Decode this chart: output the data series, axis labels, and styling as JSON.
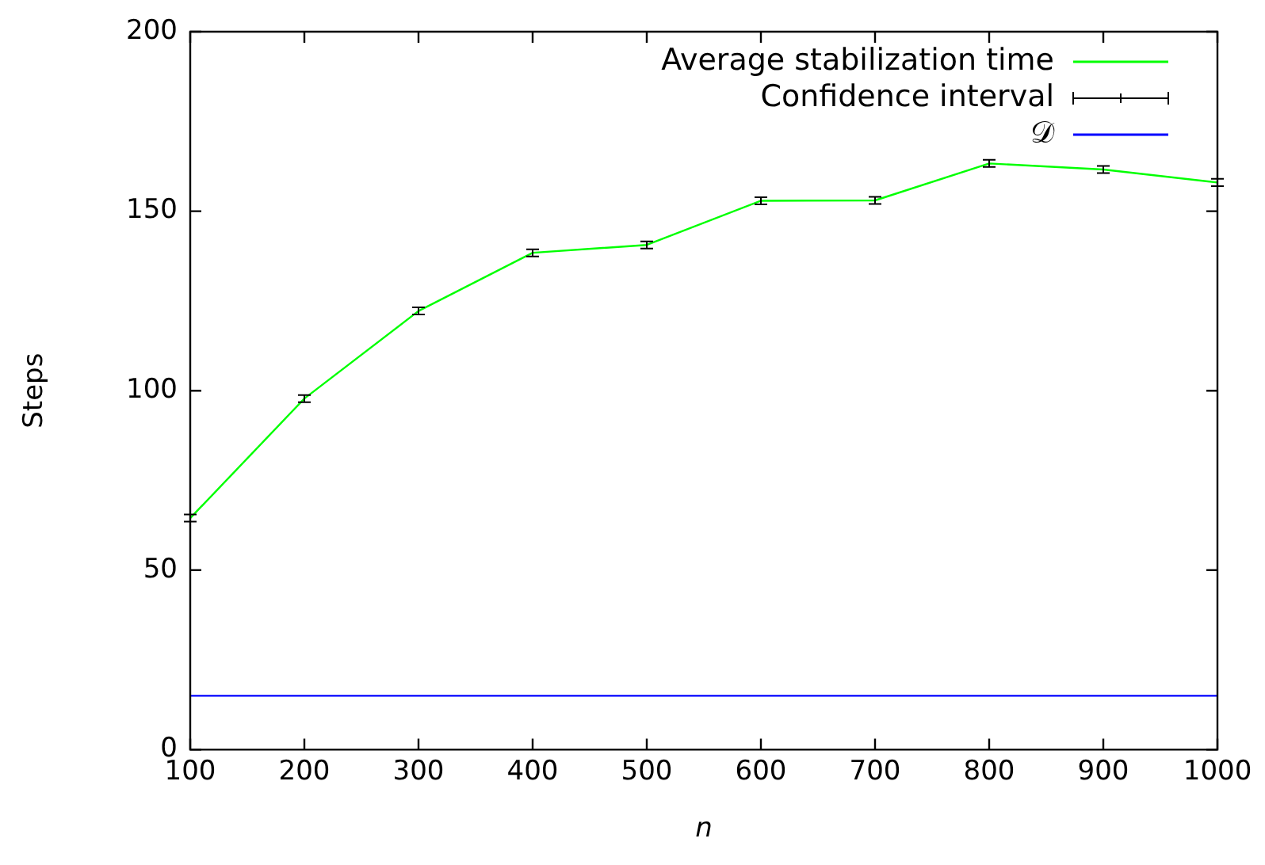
{
  "chart_data": {
    "type": "line",
    "xlabel": "n",
    "ylabel": "Steps",
    "x": [
      100,
      200,
      300,
      400,
      500,
      600,
      700,
      800,
      900,
      1000
    ],
    "series": [
      {
        "name": "Average stabilization time",
        "type": "line",
        "color": "#00ff00",
        "marker": "none",
        "values": [
          64.5,
          97.8,
          122.2,
          138.4,
          140.6,
          152.9,
          153,
          163.3,
          161.6,
          158
        ],
        "errors": [
          1,
          1,
          1,
          1,
          1,
          1,
          1,
          1,
          1,
          1
        ]
      },
      {
        "name": "𝒟",
        "type": "line",
        "color": "#0000ff",
        "marker": "none",
        "values": [
          15,
          15,
          15,
          15,
          15,
          15,
          15,
          15,
          15,
          15
        ]
      }
    ],
    "annotations": [
      "Confidence interval"
    ],
    "xlim": [
      100,
      1000
    ],
    "xticks": [
      100,
      200,
      300,
      400,
      500,
      600,
      700,
      800,
      900,
      1000
    ],
    "ylim": [
      0,
      200
    ],
    "yticks": [
      0,
      50,
      100,
      150,
      200
    ],
    "grid": false,
    "legend": "top right"
  }
}
